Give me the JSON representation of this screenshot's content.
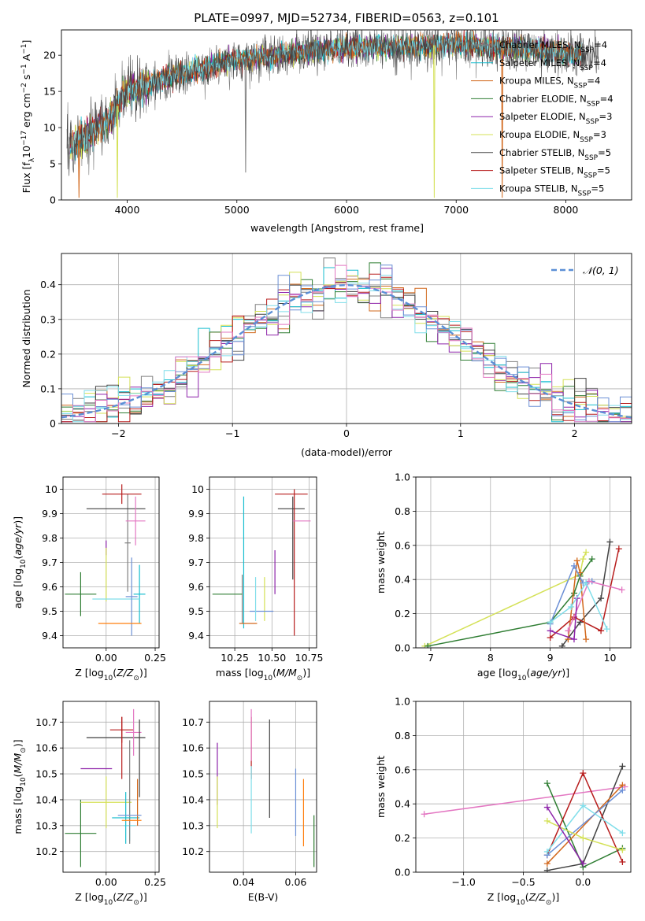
{
  "figure_title": "PLATE=0997, MJD=52734, FIBERID=0563, z=0.101",
  "colors": {
    "Chabrier MILES": "#7f7f7f",
    "Salpeter MILES": "#17becf",
    "Kroupa MILES": "#d2691e",
    "Chabrier ELODIE": "#2e7d32",
    "Salpeter ELODIE": "#8e24aa",
    "Kroupa ELODIE": "#d4e157",
    "Chabrier STELIB": "#424242",
    "Salpeter STELIB": "#b71c1c",
    "Kroupa STELIB": "#80deea",
    "extra1": "#6b8fd6",
    "extra2": "#e377c2",
    "extra3": "#ff7f0e",
    "gauss": "#5b8fd6"
  },
  "chart_data": [
    {
      "id": "spectrum",
      "type": "line",
      "title": "PLATE=0997, MJD=52734, FIBERID=0563, z=0.101",
      "xlabel": "wavelength [Angstrom, rest frame]",
      "ylabel": "Flux [f_λ 10^-17 erg cm^-2 s^-1 A^-1]",
      "xlim": [
        3400,
        8600
      ],
      "ylim": [
        0,
        23.5
      ],
      "xticks": [
        4000,
        5000,
        6000,
        7000,
        8000
      ],
      "yticks": [
        0,
        5,
        10,
        15,
        20
      ],
      "grid": false,
      "legend_position": "right",
      "series": [
        {
          "name": "Chabrier MILES, N_SSP=4"
        },
        {
          "name": "Salpeter MILES, N_SSP=4"
        },
        {
          "name": "Kroupa MILES, N_SSP=4"
        },
        {
          "name": "Chabrier ELODIE, N_SSP=4"
        },
        {
          "name": "Salpeter ELODIE, N_SSP=3"
        },
        {
          "name": "Kroupa ELODIE, N_SSP=3"
        },
        {
          "name": "Chabrier STELIB, N_SSP=5"
        },
        {
          "name": "Salpeter STELIB, N_SSP=5"
        },
        {
          "name": "Kroupa STELIB, N_SSP=5"
        }
      ],
      "continuum": {
        "x": [
          3450,
          3600,
          3800,
          4000,
          4200,
          4500,
          4800,
          5000,
          5300,
          5600,
          6000,
          6500,
          7000,
          7500,
          7900,
          8100,
          8300
        ],
        "y": [
          7.5,
          8.5,
          10.5,
          15.0,
          16.0,
          17.5,
          18.5,
          19.5,
          19.8,
          20.5,
          21.0,
          21.2,
          21.5,
          21.0,
          20.5,
          20.0,
          20.5
        ]
      },
      "dips": [
        {
          "x": 3560,
          "y": 0.3
        },
        {
          "x": 3910,
          "y": 0.3
        },
        {
          "x": 5080,
          "y": 3.8
        },
        {
          "x": 6800,
          "y": 0.3
        },
        {
          "x": 7420,
          "y": 0.3
        }
      ]
    },
    {
      "id": "residual_hist",
      "type": "histogram",
      "xlabel": "(data-model)/error",
      "ylabel": "Normed distribution",
      "xlim": [
        -2.5,
        2.5
      ],
      "ylim": [
        0,
        0.49
      ],
      "xticks": [
        -2,
        -1,
        0,
        1,
        2
      ],
      "yticks": [
        0.0,
        0.1,
        0.2,
        0.3,
        0.4
      ],
      "grid": true,
      "legend_position": "top-right",
      "legend_label": "𝒩(0, 1)",
      "bin_width": 0.1
    },
    {
      "id": "age_vs_z",
      "type": "errorbar",
      "xlabel": "Z [log10(Z/Z⊙)]",
      "ylabel": "age [log10(age/yr)]",
      "xlim": [
        -0.22,
        0.27
      ],
      "ylim": [
        9.35,
        10.05
      ],
      "xticks": [
        0.0,
        0.25
      ],
      "xticklabels": [
        "0.00",
        "0.25"
      ],
      "yticks": [
        9.4,
        9.5,
        9.6,
        9.7,
        9.8,
        9.9,
        10.0
      ],
      "grid": true,
      "points": [
        {
          "series": "Chabrier MILES",
          "x": 0.11,
          "y": 9.78,
          "xerr": 0.015,
          "yerr": 0.2
        },
        {
          "series": "Salpeter MILES",
          "x": 0.17,
          "y": 9.57,
          "xerr": 0.03,
          "yerr": 0.12
        },
        {
          "series": "Kroupa MILES",
          "x": 0.0,
          "y": 9.45,
          "xerr": 0.0,
          "yerr": 0.0
        },
        {
          "series": "Chabrier ELODIE",
          "x": -0.13,
          "y": 9.57,
          "xerr": 0.08,
          "yerr": 0.09
        },
        {
          "series": "Salpeter ELODIE",
          "x": 0.0,
          "y": 9.76,
          "xerr": 0.0,
          "yerr": 0.03
        },
        {
          "series": "Kroupa ELODIE",
          "x": 0.0,
          "y": 9.65,
          "xerr": 0.0,
          "yerr": 0.11
        },
        {
          "series": "Chabrier STELIB",
          "x": 0.05,
          "y": 9.92,
          "xerr": 0.15,
          "yerr": 0.0
        },
        {
          "series": "Salpeter STELIB",
          "x": 0.08,
          "y": 9.98,
          "xerr": 0.1,
          "yerr": 0.04
        },
        {
          "series": "Kroupa STELIB",
          "x": 0.05,
          "y": 9.55,
          "xerr": 0.12,
          "yerr": 0.0
        },
        {
          "series": "extra1",
          "x": 0.13,
          "y": 9.56,
          "xerr": 0.03,
          "yerr": 0.16
        },
        {
          "series": "extra2",
          "x": 0.15,
          "y": 9.87,
          "xerr": 0.05,
          "yerr": 0.1
        },
        {
          "series": "extra3",
          "x": 0.07,
          "y": 9.45,
          "xerr": 0.11,
          "yerr": 0.0
        }
      ]
    },
    {
      "id": "age_vs_mass",
      "type": "errorbar",
      "xlabel": "mass [log10(M/M⊙)]",
      "xlim": [
        10.08,
        10.8
      ],
      "ylim": [
        9.35,
        10.05
      ],
      "xticks": [
        10.25,
        10.5,
        10.75
      ],
      "xticklabels": [
        "10.25",
        "10.50",
        "10.75"
      ],
      "yticks": [
        9.4,
        9.5,
        9.6,
        9.7,
        9.8,
        9.9,
        10.0
      ],
      "grid": true,
      "points": [
        {
          "series": "Chabrier MILES",
          "x": 10.3,
          "y": 9.55,
          "xerr": 0.0,
          "yerr": 0.1
        },
        {
          "series": "Salpeter MILES",
          "x": 10.31,
          "y": 9.7,
          "xerr": 0.0,
          "yerr": 0.27
        },
        {
          "series": "Kroupa MILES",
          "x": 10.34,
          "y": 9.45,
          "xerr": 0.06,
          "yerr": 0.0
        },
        {
          "series": "Chabrier ELODIE",
          "x": 10.2,
          "y": 9.57,
          "xerr": 0.1,
          "yerr": 0.0
        },
        {
          "series": "Salpeter ELODIE",
          "x": 10.52,
          "y": 9.66,
          "xerr": 0.0,
          "yerr": 0.09
        },
        {
          "series": "Kroupa ELODIE",
          "x": 10.45,
          "y": 9.55,
          "xerr": 0.0,
          "yerr": 0.09
        },
        {
          "series": "Chabrier STELIB",
          "x": 10.63,
          "y": 9.92,
          "xerr": 0.09,
          "yerr": 0.0
        },
        {
          "series": "Salpeter STELIB",
          "x": 10.65,
          "y": 9.7,
          "xerr": 0.0,
          "yerr": 0.3
        },
        {
          "series": "Salpeter STELIB",
          "x": 10.63,
          "y": 9.98,
          "xerr": 0.11,
          "yerr": 0.0
        },
        {
          "series": "Chabrier STELIB",
          "x": 10.64,
          "y": 9.8,
          "xerr": 0.0,
          "yerr": 0.17
        },
        {
          "series": "extra1",
          "x": 10.43,
          "y": 9.5,
          "xerr": 0.08,
          "yerr": 0.0
        },
        {
          "series": "extra2",
          "x": 10.7,
          "y": 9.87,
          "xerr": 0.06,
          "yerr": 0.0
        },
        {
          "series": "Kroupa STELIB",
          "x": 10.39,
          "y": 9.55,
          "xerr": 0.0,
          "yerr": 0.09
        }
      ]
    },
    {
      "id": "mass_weight_vs_age",
      "type": "line",
      "xlabel": "age [log10(age/yr)]",
      "ylabel": "mass weight",
      "xlim": [
        6.75,
        10.35
      ],
      "ylim": [
        0,
        1.0
      ],
      "xticks": [
        7,
        8,
        9,
        10
      ],
      "yticks": [
        0.0,
        0.2,
        0.4,
        0.6,
        0.8,
        1.0
      ],
      "yticklabels": [
        "0.0",
        "0.2",
        "0.4",
        "0.6",
        "0.8",
        "1.0"
      ],
      "grid": true,
      "series": [
        {
          "series": "Kroupa ELODIE",
          "x": [
            6.9,
            9.5,
            9.55,
            9.6
          ],
          "y": [
            0.01,
            0.43,
            0.52,
            0.56
          ]
        },
        {
          "series": "Chabrier ELODIE",
          "x": [
            6.95,
            9.0,
            9.4,
            9.5,
            9.7
          ],
          "y": [
            0.01,
            0.15,
            0.32,
            0.42,
            0.52
          ]
        },
        {
          "series": "Chabrier STELIB",
          "x": [
            9.2,
            9.5,
            9.85,
            10.0
          ],
          "y": [
            0.01,
            0.15,
            0.29,
            0.62
          ]
        },
        {
          "series": "Salpeter STELIB",
          "x": [
            9.0,
            9.4,
            9.85,
            10.15
          ],
          "y": [
            0.06,
            0.18,
            0.1,
            0.58
          ]
        },
        {
          "series": "Kroupa MILES",
          "x": [
            9.3,
            9.45,
            9.5,
            9.6
          ],
          "y": [
            0.05,
            0.51,
            0.44,
            0.05
          ]
        },
        {
          "series": "extra1",
          "x": [
            9.0,
            9.4,
            9.55,
            9.7
          ],
          "y": [
            0.14,
            0.48,
            0.38,
            0.39
          ]
        },
        {
          "series": "extra2",
          "x": [
            9.3,
            9.65,
            10.2
          ],
          "y": [
            0.1,
            0.39,
            0.34
          ]
        },
        {
          "series": "Salpeter ELODIE",
          "x": [
            9.0,
            9.4,
            9.45
          ],
          "y": [
            0.1,
            0.05,
            0.29
          ]
        },
        {
          "series": "Kroupa STELIB",
          "x": [
            9.0,
            9.35,
            9.6,
            9.95
          ],
          "y": [
            0.15,
            0.24,
            0.38,
            0.11
          ]
        }
      ]
    },
    {
      "id": "mass_vs_z",
      "type": "errorbar",
      "xlabel": "Z [log10(Z/Z⊙)]",
      "ylabel": "mass [log10(M/M⊙)]",
      "xlim": [
        -0.22,
        0.27
      ],
      "ylim": [
        10.12,
        10.78
      ],
      "xticks": [
        0.0,
        0.25
      ],
      "xticklabels": [
        "0.00",
        "0.25"
      ],
      "yticks": [
        10.2,
        10.3,
        10.4,
        10.5,
        10.6,
        10.7
      ],
      "grid": true,
      "points": [
        {
          "series": "Chabrier ELODIE",
          "x": -0.13,
          "y": 10.27,
          "xerr": 0.08,
          "yerr": 0.13
        },
        {
          "series": "Salpeter ELODIE",
          "x": -0.05,
          "y": 10.52,
          "xerr": 0.08,
          "yerr": 0.0
        },
        {
          "series": "Kroupa ELODIE",
          "x": 0.0,
          "y": 10.39,
          "xerr": 0.13,
          "yerr": 0.1
        },
        {
          "series": "Chabrier STELIB",
          "x": 0.05,
          "y": 10.64,
          "xerr": 0.15,
          "yerr": 0.0
        },
        {
          "series": "Salpeter STELIB",
          "x": 0.08,
          "y": 10.67,
          "xerr": 0.06,
          "yerr": 0.05
        },
        {
          "series": "Salpeter STELIB",
          "x": 0.08,
          "y": 10.6,
          "xerr": 0.0,
          "yerr": 0.12
        },
        {
          "series": "Kroupa STELIB",
          "x": 0.12,
          "y": 10.3,
          "xerr": 0.03,
          "yerr": 0.06
        },
        {
          "series": "Chabrier MILES",
          "x": 0.12,
          "y": 10.43,
          "xerr": 0.0,
          "yerr": 0.2
        },
        {
          "series": "Salpeter MILES",
          "x": 0.1,
          "y": 10.33,
          "xerr": 0.07,
          "yerr": 0.1
        },
        {
          "series": "Kroupa MILES",
          "x": 0.16,
          "y": 10.39,
          "xerr": 0.0,
          "yerr": 0.09
        },
        {
          "series": "extra1",
          "x": 0.12,
          "y": 10.34,
          "xerr": 0.06,
          "yerr": 0.0
        },
        {
          "series": "extra2",
          "x": 0.14,
          "y": 10.66,
          "xerr": 0.04,
          "yerr": 0.09
        },
        {
          "series": "extra3",
          "x": 0.13,
          "y": 10.32,
          "xerr": 0.05,
          "yerr": 0.0
        },
        {
          "series": "Chabrier STELIB",
          "x": 0.17,
          "y": 10.56,
          "xerr": 0.0,
          "yerr": 0.15
        }
      ]
    },
    {
      "id": "mass_vs_ebv",
      "type": "errorbar",
      "xlabel": "E(B-V)",
      "xlim": [
        0.027,
        0.068
      ],
      "ylim": [
        10.12,
        10.78
      ],
      "xticks": [
        0.04,
        0.06
      ],
      "xticklabels": [
        "0.04",
        "0.06"
      ],
      "yticks": [
        10.2,
        10.3,
        10.4,
        10.5,
        10.6,
        10.7
      ],
      "grid": true,
      "points": [
        {
          "series": "Salpeter ELODIE",
          "x": 0.03,
          "y": 10.5,
          "xerr": 0.0,
          "yerr": 0.12
        },
        {
          "series": "Kroupa ELODIE",
          "x": 0.03,
          "y": 10.39,
          "xerr": 0.0,
          "yerr": 0.1
        },
        {
          "series": "Salpeter STELIB",
          "x": 0.043,
          "y": 10.6,
          "xerr": 0.0,
          "yerr": 0.12
        },
        {
          "series": "extra2",
          "x": 0.043,
          "y": 10.65,
          "xerr": 0.0,
          "yerr": 0.1
        },
        {
          "series": "Kroupa STELIB",
          "x": 0.043,
          "y": 10.4,
          "xerr": 0.0,
          "yerr": 0.13
        },
        {
          "series": "Chabrier STELIB",
          "x": 0.05,
          "y": 10.52,
          "xerr": 0.0,
          "yerr": 0.19
        },
        {
          "series": "extra1",
          "x": 0.06,
          "y": 10.39,
          "xerr": 0.0,
          "yerr": 0.13
        },
        {
          "series": "extra3",
          "x": 0.063,
          "y": 10.35,
          "xerr": 0.0,
          "yerr": 0.13
        },
        {
          "series": "Chabrier ELODIE",
          "x": 0.067,
          "y": 10.24,
          "xerr": 0.0,
          "yerr": 0.1
        }
      ]
    },
    {
      "id": "mass_weight_vs_z",
      "type": "line",
      "xlabel": "Z [log10(Z/Z⊙)]",
      "ylabel": "mass weight",
      "xlim": [
        -1.4,
        0.4
      ],
      "ylim": [
        0,
        1.0
      ],
      "xticks": [
        -1.0,
        -0.5,
        0.0
      ],
      "xticklabels": [
        "−1.0",
        "−0.5",
        "0.0"
      ],
      "yticks": [
        0.0,
        0.2,
        0.4,
        0.6,
        0.8,
        1.0
      ],
      "yticklabels": [
        "0.0",
        "0.2",
        "0.4",
        "0.6",
        "0.8",
        "1.0"
      ],
      "grid": true,
      "series": [
        {
          "series": "extra2",
          "x": [
            -1.33,
            0.35
          ],
          "y": [
            0.34,
            0.5
          ]
        },
        {
          "series": "Chabrier ELODIE",
          "x": [
            -0.3,
            0.0,
            0.33
          ],
          "y": [
            0.52,
            0.03,
            0.14
          ]
        },
        {
          "series": "Chabrier STELIB",
          "x": [
            -0.3,
            0.0,
            0.33
          ],
          "y": [
            0.01,
            0.05,
            0.62
          ]
        },
        {
          "series": "Salpeter STELIB",
          "x": [
            -0.3,
            0.0,
            0.33
          ],
          "y": [
            0.1,
            0.58,
            0.06
          ]
        },
        {
          "series": "Kroupa MILES",
          "x": [
            -0.3,
            0.33
          ],
          "y": [
            0.05,
            0.51
          ]
        },
        {
          "series": "extra1",
          "x": [
            -0.3,
            0.33
          ],
          "y": [
            0.1,
            0.48
          ]
        },
        {
          "series": "Kroupa STELIB",
          "x": [
            -0.3,
            0.0,
            0.33
          ],
          "y": [
            0.12,
            0.39,
            0.23
          ]
        },
        {
          "series": "Kroupa ELODIE",
          "x": [
            -0.3,
            0.0,
            0.33
          ],
          "y": [
            0.3,
            0.2,
            0.13
          ]
        },
        {
          "series": "Salpeter ELODIE",
          "x": [
            -0.3,
            0.0
          ],
          "y": [
            0.38,
            0.05
          ]
        }
      ]
    }
  ]
}
